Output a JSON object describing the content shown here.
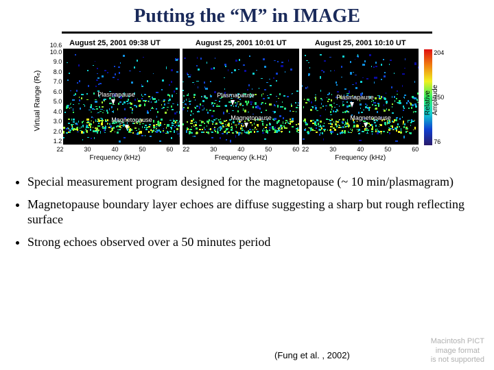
{
  "title": "Putting the “M” in IMAGE",
  "ylabel": "Virtual Range (Rₑ)",
  "colorbar": {
    "label": "Relative Amplitude",
    "ticks": [
      "204",
      "150",
      "76"
    ],
    "gradient_colors": [
      "#2a1a6a",
      "#1040d0",
      "#10d0d0",
      "#30f060",
      "#f0f020",
      "#f08010",
      "#e01010"
    ]
  },
  "axes": {
    "yticks": [
      "10.0",
      "9.0",
      "8.0",
      "7.0",
      "6.0",
      "5.0",
      "4.0",
      "3.0",
      "2.0",
      "1.2"
    ],
    "ytick_above": "10.6",
    "xticks": [
      "22",
      "30",
      "40",
      "50",
      "60"
    ],
    "xlabel": "Frequency (kHz)",
    "xlabel_alt": "Frequency (k.Hz)",
    "yrange": [
      1.2,
      10.6
    ],
    "xrange": [
      22,
      60
    ]
  },
  "panels": [
    {
      "title": "August 25, 2001 09:38 UT",
      "annot_plasmapause_y": 5.5,
      "annot_magnetopause_y": 3.0
    },
    {
      "title": "August 25, 2001 10:01 UT",
      "annot_plasmapause_y": 5.4,
      "annot_magnetopause_y": 3.2
    },
    {
      "title": "August 25, 2001 10:10 UT",
      "annot_plasmapause_y": 5.2,
      "annot_magnetopause_y": 3.2
    }
  ],
  "annotation_labels": {
    "plasmapause": "Plasmapause",
    "magnetopause": "Magnetopause"
  },
  "speckle_palette": [
    "#0a0aa0",
    "#1040d0",
    "#1090e0",
    "#10d0d0",
    "#20e090",
    "#30f060",
    "#a0f030",
    "#f0f020",
    "#f0a020",
    "#e03020"
  ],
  "plot_bg": "#000000",
  "bullets": [
    "Special measurement program designed for the magnetopause (~ 10 min/plasmagram)",
    "Magnetopause boundary layer echoes are diffuse suggesting a sharp but rough reflecting surface",
    " Strong echoes observed over a 50 minutes period"
  ],
  "citation": "(Fung et al. , 2002)",
  "pict_placeholder": [
    "Macintosh PICT",
    "image format",
    "is not supported"
  ],
  "fonts": {
    "title_size_pt": 28,
    "bullet_size_pt": 18,
    "axis_size_pt": 10,
    "tick_size_pt": 9,
    "panel_title_size_pt": 11
  },
  "layout": {
    "panel_plot_w": 170,
    "panel_plot_h": 140,
    "colorbar_w": 12
  }
}
